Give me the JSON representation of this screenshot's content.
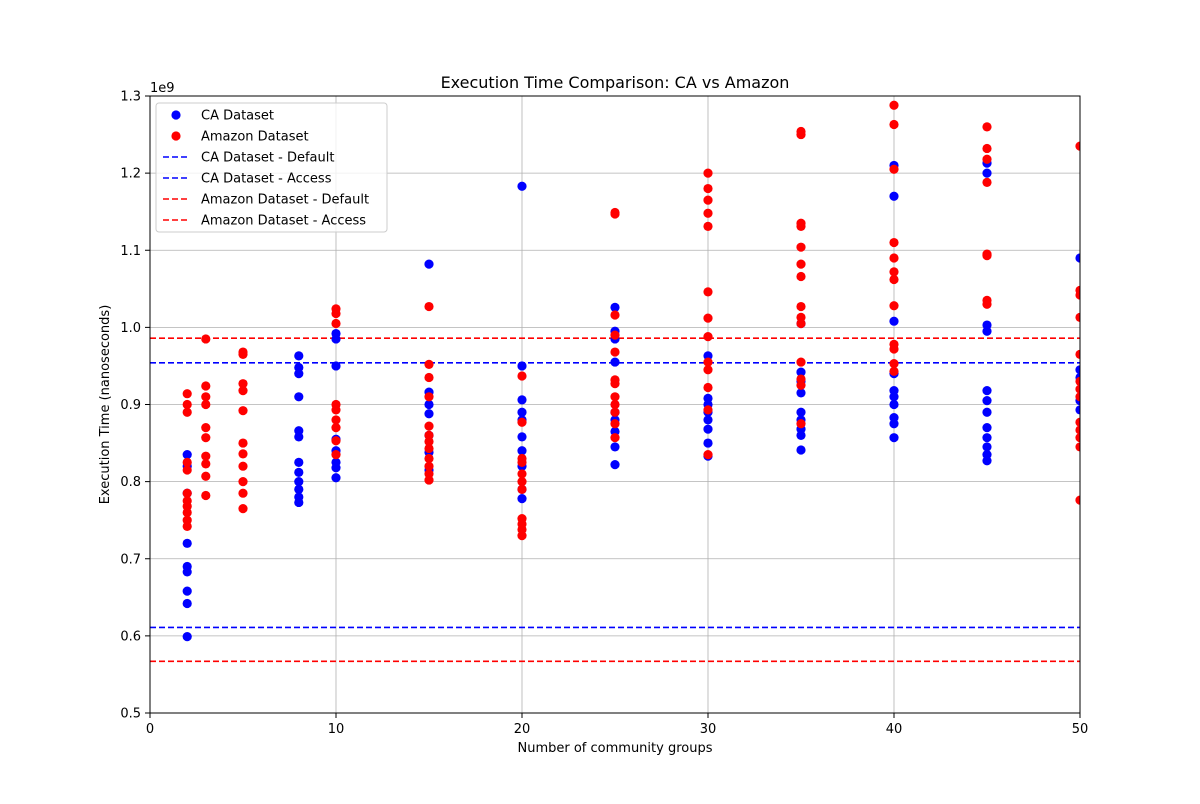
{
  "chart_data": {
    "type": "scatter",
    "title": "Execution Time Comparison: CA vs Amazon",
    "xlabel": "Number of community groups",
    "ylabel": "Execution Time (nanoseconds)",
    "y_offset_label": "1e9",
    "xlim": [
      0,
      50
    ],
    "ylim": [
      0.5,
      1.3
    ],
    "x_scale_note": "y values are in units of 1e9 nanoseconds",
    "xticks": [
      0,
      10,
      20,
      30,
      40,
      50
    ],
    "xtick_labels": [
      "0",
      "10",
      "20",
      "30",
      "40",
      "50"
    ],
    "yticks": [
      0.5,
      0.6,
      0.7,
      0.8,
      0.9,
      1.0,
      1.1,
      1.2,
      1.3
    ],
    "ytick_labels": [
      "0.5",
      "0.6",
      "0.7",
      "0.8",
      "0.9",
      "1.0",
      "1.1",
      "1.2",
      "1.3"
    ],
    "grid": true,
    "legend_position": "upper-left",
    "legend": [
      "CA Dataset",
      "Amazon Dataset",
      "CA Dataset - Default",
      "CA Dataset - Access",
      "Amazon Dataset - Default",
      "Amazon Dataset - Access"
    ],
    "scatter_series": [
      {
        "name": "CA Dataset",
        "color": "#0000ff",
        "points": [
          [
            2,
            0.599
          ],
          [
            2,
            0.642
          ],
          [
            2,
            0.658
          ],
          [
            2,
            0.683
          ],
          [
            2,
            0.69
          ],
          [
            2,
            0.72
          ],
          [
            2,
            0.785
          ],
          [
            2,
            0.82
          ],
          [
            2,
            0.835
          ],
          [
            8,
            0.773
          ],
          [
            8,
            0.78
          ],
          [
            8,
            0.79
          ],
          [
            8,
            0.8
          ],
          [
            8,
            0.812
          ],
          [
            8,
            0.825
          ],
          [
            8,
            0.858
          ],
          [
            8,
            0.866
          ],
          [
            8,
            0.91
          ],
          [
            8,
            0.94
          ],
          [
            8,
            0.948
          ],
          [
            8,
            0.963
          ],
          [
            10,
            0.805
          ],
          [
            10,
            0.818
          ],
          [
            10,
            0.825
          ],
          [
            10,
            0.84
          ],
          [
            10,
            0.855
          ],
          [
            10,
            0.95
          ],
          [
            10,
            0.985
          ],
          [
            10,
            0.992
          ],
          [
            15,
            0.815
          ],
          [
            15,
            0.838
          ],
          [
            15,
            0.86
          ],
          [
            15,
            0.888
          ],
          [
            15,
            0.9
          ],
          [
            15,
            0.916
          ],
          [
            15,
            1.082
          ],
          [
            20,
            0.778
          ],
          [
            20,
            0.79
          ],
          [
            20,
            0.82
          ],
          [
            20,
            0.84
          ],
          [
            20,
            0.858
          ],
          [
            20,
            0.88
          ],
          [
            20,
            0.89
          ],
          [
            20,
            0.906
          ],
          [
            20,
            0.95
          ],
          [
            20,
            1.183
          ],
          [
            25,
            0.822
          ],
          [
            25,
            0.845
          ],
          [
            25,
            0.865
          ],
          [
            25,
            0.88
          ],
          [
            25,
            0.89
          ],
          [
            25,
            0.955
          ],
          [
            25,
            0.985
          ],
          [
            25,
            0.995
          ],
          [
            25,
            1.026
          ],
          [
            30,
            0.833
          ],
          [
            30,
            0.85
          ],
          [
            30,
            0.868
          ],
          [
            30,
            0.88
          ],
          [
            30,
            0.89
          ],
          [
            30,
            0.9
          ],
          [
            30,
            0.908
          ],
          [
            30,
            0.963
          ],
          [
            35,
            0.841
          ],
          [
            35,
            0.86
          ],
          [
            35,
            0.868
          ],
          [
            35,
            0.88
          ],
          [
            35,
            0.89
          ],
          [
            35,
            0.915
          ],
          [
            35,
            0.93
          ],
          [
            35,
            0.942
          ],
          [
            35,
            1.005
          ],
          [
            40,
            0.857
          ],
          [
            40,
            0.875
          ],
          [
            40,
            0.883
          ],
          [
            40,
            0.9
          ],
          [
            40,
            0.91
          ],
          [
            40,
            0.918
          ],
          [
            40,
            0.94
          ],
          [
            40,
            1.008
          ],
          [
            40,
            1.17
          ],
          [
            40,
            1.21
          ],
          [
            45,
            0.827
          ],
          [
            45,
            0.835
          ],
          [
            45,
            0.845
          ],
          [
            45,
            0.857
          ],
          [
            45,
            0.87
          ],
          [
            45,
            0.89
          ],
          [
            45,
            0.905
          ],
          [
            45,
            0.918
          ],
          [
            45,
            0.995
          ],
          [
            45,
            1.003
          ],
          [
            45,
            1.2
          ],
          [
            45,
            1.213
          ],
          [
            50,
            0.893
          ],
          [
            50,
            0.905
          ],
          [
            50,
            0.935
          ],
          [
            50,
            0.945
          ],
          [
            50,
            1.09
          ]
        ]
      },
      {
        "name": "Amazon Dataset",
        "color": "#ff0000",
        "points": [
          [
            2,
            0.742
          ],
          [
            2,
            0.75
          ],
          [
            2,
            0.76
          ],
          [
            2,
            0.768
          ],
          [
            2,
            0.775
          ],
          [
            2,
            0.785
          ],
          [
            2,
            0.815
          ],
          [
            2,
            0.825
          ],
          [
            2,
            0.89
          ],
          [
            2,
            0.9
          ],
          [
            2,
            0.914
          ],
          [
            3,
            0.782
          ],
          [
            3,
            0.807
          ],
          [
            3,
            0.823
          ],
          [
            3,
            0.833
          ],
          [
            3,
            0.857
          ],
          [
            3,
            0.87
          ],
          [
            3,
            0.9
          ],
          [
            3,
            0.91
          ],
          [
            3,
            0.924
          ],
          [
            3,
            0.985
          ],
          [
            5,
            0.765
          ],
          [
            5,
            0.785
          ],
          [
            5,
            0.8
          ],
          [
            5,
            0.82
          ],
          [
            5,
            0.836
          ],
          [
            5,
            0.85
          ],
          [
            5,
            0.892
          ],
          [
            5,
            0.918
          ],
          [
            5,
            0.927
          ],
          [
            5,
            0.965
          ],
          [
            5,
            0.968
          ],
          [
            10,
            0.835
          ],
          [
            10,
            0.853
          ],
          [
            10,
            0.87
          ],
          [
            10,
            0.88
          ],
          [
            10,
            0.893
          ],
          [
            10,
            0.9
          ],
          [
            10,
            1.005
          ],
          [
            10,
            1.018
          ],
          [
            10,
            1.024
          ],
          [
            15,
            0.802
          ],
          [
            15,
            0.81
          ],
          [
            15,
            0.82
          ],
          [
            15,
            0.83
          ],
          [
            15,
            0.843
          ],
          [
            15,
            0.852
          ],
          [
            15,
            0.86
          ],
          [
            15,
            0.872
          ],
          [
            15,
            0.91
          ],
          [
            15,
            0.935
          ],
          [
            15,
            0.952
          ],
          [
            15,
            1.027
          ],
          [
            20,
            0.73
          ],
          [
            20,
            0.738
          ],
          [
            20,
            0.745
          ],
          [
            20,
            0.752
          ],
          [
            20,
            0.79
          ],
          [
            20,
            0.8
          ],
          [
            20,
            0.81
          ],
          [
            20,
            0.825
          ],
          [
            20,
            0.83
          ],
          [
            20,
            0.877
          ],
          [
            20,
            0.937
          ],
          [
            25,
            0.857
          ],
          [
            25,
            0.875
          ],
          [
            25,
            0.89
          ],
          [
            25,
            0.9
          ],
          [
            25,
            0.91
          ],
          [
            25,
            0.927
          ],
          [
            25,
            0.932
          ],
          [
            25,
            0.968
          ],
          [
            25,
            0.99
          ],
          [
            25,
            1.016
          ],
          [
            25,
            1.147
          ],
          [
            25,
            1.149
          ],
          [
            30,
            0.835
          ],
          [
            30,
            0.893
          ],
          [
            30,
            0.922
          ],
          [
            30,
            0.945
          ],
          [
            30,
            0.955
          ],
          [
            30,
            0.988
          ],
          [
            30,
            1.012
          ],
          [
            30,
            1.046
          ],
          [
            30,
            1.131
          ],
          [
            30,
            1.148
          ],
          [
            30,
            1.165
          ],
          [
            30,
            1.18
          ],
          [
            30,
            1.2
          ],
          [
            35,
            0.875
          ],
          [
            35,
            0.925
          ],
          [
            35,
            0.933
          ],
          [
            35,
            0.955
          ],
          [
            35,
            1.005
          ],
          [
            35,
            1.013
          ],
          [
            35,
            1.027
          ],
          [
            35,
            1.066
          ],
          [
            35,
            1.082
          ],
          [
            35,
            1.104
          ],
          [
            35,
            1.131
          ],
          [
            35,
            1.135
          ],
          [
            35,
            1.25
          ],
          [
            35,
            1.254
          ],
          [
            40,
            0.943
          ],
          [
            40,
            0.953
          ],
          [
            40,
            0.972
          ],
          [
            40,
            0.978
          ],
          [
            40,
            1.028
          ],
          [
            40,
            1.062
          ],
          [
            40,
            1.072
          ],
          [
            40,
            1.09
          ],
          [
            40,
            1.11
          ],
          [
            40,
            1.205
          ],
          [
            40,
            1.263
          ],
          [
            40,
            1.288
          ],
          [
            45,
            1.03
          ],
          [
            45,
            1.035
          ],
          [
            45,
            1.093
          ],
          [
            45,
            1.095
          ],
          [
            45,
            1.188
          ],
          [
            45,
            1.218
          ],
          [
            45,
            1.232
          ],
          [
            45,
            1.26
          ],
          [
            50,
            0.776
          ],
          [
            50,
            0.845
          ],
          [
            50,
            0.857
          ],
          [
            50,
            0.867
          ],
          [
            50,
            0.877
          ],
          [
            50,
            0.91
          ],
          [
            50,
            0.92
          ],
          [
            50,
            0.93
          ],
          [
            50,
            0.965
          ],
          [
            50,
            1.013
          ],
          [
            50,
            1.042
          ],
          [
            50,
            1.048
          ],
          [
            50,
            1.235
          ]
        ]
      }
    ],
    "reference_lines": [
      {
        "name": "CA Dataset - Default",
        "color": "#0000ff",
        "y": 0.954,
        "style": "dashed"
      },
      {
        "name": "CA Dataset - Access",
        "color": "#0000ff",
        "y": 0.611,
        "style": "dashed"
      },
      {
        "name": "Amazon Dataset - Default",
        "color": "#ff0000",
        "y": 0.986,
        "style": "dashed"
      },
      {
        "name": "Amazon Dataset - Access",
        "color": "#ff0000",
        "y": 0.567,
        "style": "dashed"
      }
    ]
  }
}
